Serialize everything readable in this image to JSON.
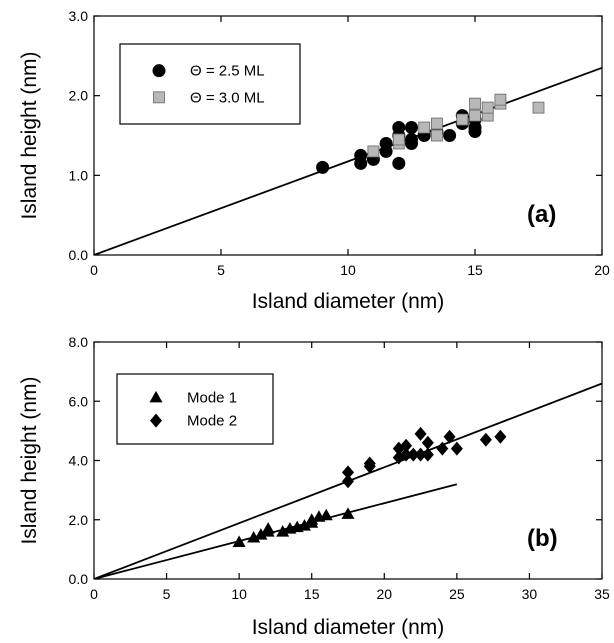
{
  "chart_data": [
    {
      "type": "scatter",
      "panel_label": "(a)",
      "xlabel": "Island diameter (nm)",
      "ylabel": "Island height (nm)",
      "xlim": [
        0,
        20
      ],
      "ylim": [
        0,
        3.0
      ],
      "xticks": [
        0,
        5,
        10,
        15,
        20
      ],
      "yticks": [
        0.0,
        1.0,
        2.0,
        3.0
      ],
      "xtick_labels": [
        "0",
        "5",
        "10",
        "15",
        "20"
      ],
      "ytick_labels": [
        "0.0",
        "1.0",
        "2.0",
        "3.0"
      ],
      "grid": false,
      "legend_position": "top-left",
      "series": [
        {
          "name": "Θ = 2.5 ML",
          "marker": "circle",
          "color": "#000000",
          "points": [
            [
              9.0,
              1.1
            ],
            [
              10.5,
              1.15
            ],
            [
              10.5,
              1.25
            ],
            [
              11.0,
              1.2
            ],
            [
              11.5,
              1.3
            ],
            [
              11.5,
              1.4
            ],
            [
              12.0,
              1.15
            ],
            [
              12.0,
              1.5
            ],
            [
              12.0,
              1.6
            ],
            [
              12.5,
              1.4
            ],
            [
              12.5,
              1.45
            ],
            [
              12.5,
              1.6
            ],
            [
              13.0,
              1.5
            ],
            [
              13.5,
              1.55
            ],
            [
              14.0,
              1.5
            ],
            [
              14.5,
              1.65
            ],
            [
              14.5,
              1.75
            ],
            [
              15.0,
              1.55
            ],
            [
              15.0,
              1.6
            ],
            [
              15.0,
              1.7
            ]
          ]
        },
        {
          "name": "Θ = 3.0 ML",
          "marker": "square",
          "color": "#b8b8b8",
          "points": [
            [
              11.0,
              1.3
            ],
            [
              12.0,
              1.4
            ],
            [
              12.0,
              1.45
            ],
            [
              13.0,
              1.6
            ],
            [
              13.5,
              1.5
            ],
            [
              13.5,
              1.65
            ],
            [
              14.5,
              1.7
            ],
            [
              15.0,
              1.75
            ],
            [
              15.0,
              1.9
            ],
            [
              15.5,
              1.75
            ],
            [
              15.5,
              1.85
            ],
            [
              16.0,
              1.9
            ],
            [
              16.0,
              1.95
            ],
            [
              17.5,
              1.85
            ]
          ]
        }
      ],
      "fit_lines": [
        {
          "x": [
            0,
            20
          ],
          "y": [
            0,
            2.35
          ]
        }
      ]
    },
    {
      "type": "scatter",
      "panel_label": "(b)",
      "xlabel": "Island diameter (nm)",
      "ylabel": "Island height (nm)",
      "xlim": [
        0,
        35
      ],
      "ylim": [
        0,
        8.0
      ],
      "xticks": [
        0,
        5,
        10,
        15,
        20,
        25,
        30,
        35
      ],
      "yticks": [
        0.0,
        2.0,
        4.0,
        6.0,
        8.0
      ],
      "xtick_labels": [
        "0",
        "5",
        "10",
        "15",
        "20",
        "25",
        "30",
        "35"
      ],
      "ytick_labels": [
        "0.0",
        "2.0",
        "4.0",
        "6.0",
        "8.0"
      ],
      "grid": false,
      "legend_position": "top-left",
      "series": [
        {
          "name": "Mode 1",
          "marker": "triangle",
          "color": "#000000",
          "points": [
            [
              10.0,
              1.25
            ],
            [
              11.0,
              1.4
            ],
            [
              11.5,
              1.5
            ],
            [
              12.0,
              1.6
            ],
            [
              12.0,
              1.7
            ],
            [
              13.0,
              1.6
            ],
            [
              13.5,
              1.7
            ],
            [
              14.0,
              1.75
            ],
            [
              14.5,
              1.8
            ],
            [
              15.0,
              1.9
            ],
            [
              15.0,
              2.0
            ],
            [
              15.5,
              2.1
            ],
            [
              16.0,
              2.15
            ],
            [
              17.5,
              2.2
            ]
          ]
        },
        {
          "name": "Mode 2",
          "marker": "diamond",
          "color": "#000000",
          "points": [
            [
              17.5,
              3.3
            ],
            [
              17.5,
              3.6
            ],
            [
              19.0,
              3.8
            ],
            [
              19.0,
              3.9
            ],
            [
              21.0,
              4.1
            ],
            [
              21.0,
              4.4
            ],
            [
              21.5,
              4.2
            ],
            [
              21.5,
              4.5
            ],
            [
              22.0,
              4.2
            ],
            [
              22.5,
              4.2
            ],
            [
              22.5,
              4.9
            ],
            [
              23.0,
              4.2
            ],
            [
              23.0,
              4.6
            ],
            [
              24.0,
              4.4
            ],
            [
              24.5,
              4.8
            ],
            [
              25.0,
              4.4
            ],
            [
              27.0,
              4.7
            ],
            [
              28.0,
              4.8
            ]
          ]
        }
      ],
      "fit_lines": [
        {
          "x": [
            0,
            35
          ],
          "y": [
            0,
            6.6
          ]
        },
        {
          "x": [
            0,
            25
          ],
          "y": [
            0,
            3.2
          ]
        }
      ]
    }
  ]
}
